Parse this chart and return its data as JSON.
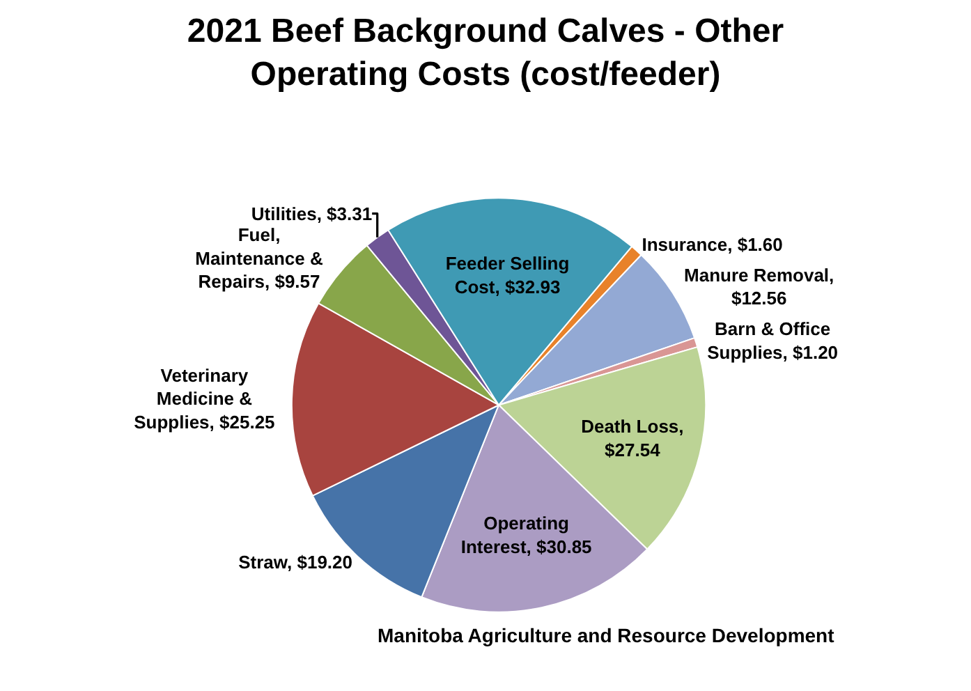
{
  "chart_data": {
    "type": "pie",
    "title": "2021 Beef Background Calves - Other Operating Costs (cost/feeder)",
    "categories": [
      "Insurance",
      "Manure Removal",
      "Barn & Office Supplies",
      "Death Loss",
      "Operating Interest",
      "Straw",
      "Veterinary Medicine & Supplies",
      "Fuel, Maintenance & Repairs",
      "Utilities",
      "Feeder Selling Cost"
    ],
    "values": [
      1.6,
      12.56,
      1.2,
      27.54,
      30.85,
      19.2,
      25.25,
      9.57,
      3.31,
      32.93
    ],
    "value_labels": [
      ", $1.60",
      ", $12.56",
      ", $1.20",
      ", $27.54",
      ", $30.85",
      ", $19.20",
      ", $25.25",
      ", $9.57",
      ", $3.31",
      ", $32.93"
    ],
    "colors": [
      "#e8822a",
      "#93a9d4",
      "#d99694",
      "#bcd395",
      "#ab9cc3",
      "#4673a8",
      "#a8443f",
      "#88a64a",
      "#6e5596",
      "#3f9ab4"
    ],
    "annotations": [
      "Manitoba Agriculture and Resource Development"
    ]
  }
}
